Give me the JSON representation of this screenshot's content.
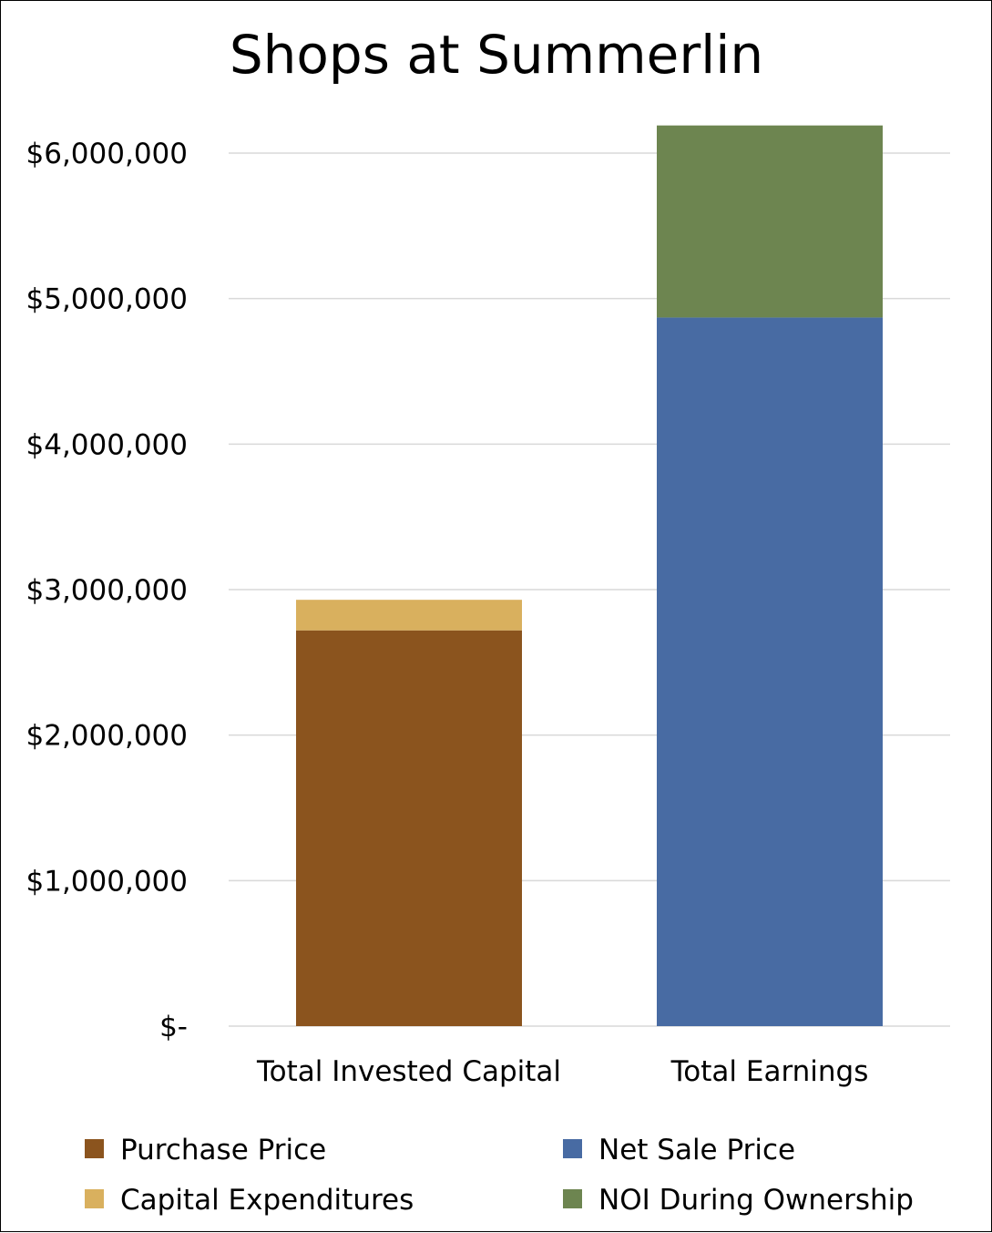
{
  "chart_data": {
    "type": "bar",
    "stacked": true,
    "title": "Shops at Summerlin",
    "categories": [
      "Total Invested Capital",
      "Total Earnings"
    ],
    "series": [
      {
        "name": "Purchase Price",
        "color": "#8b541e",
        "values": [
          2720000,
          0
        ]
      },
      {
        "name": "Capital Expenditures",
        "color": "#d9b05e",
        "values": [
          210000,
          0
        ]
      },
      {
        "name": "Net Sale Price",
        "color": "#486ba3",
        "values": [
          0,
          4870000
        ]
      },
      {
        "name": "NOI During Ownership",
        "color": "#6d8550",
        "values": [
          0,
          1320000
        ]
      }
    ],
    "yticks": [
      {
        "value": 0,
        "label": "$-"
      },
      {
        "value": 1000000,
        "label": "$1,000,000"
      },
      {
        "value": 2000000,
        "label": "$2,000,000"
      },
      {
        "value": 3000000,
        "label": "$3,000,000"
      },
      {
        "value": 4000000,
        "label": "$4,000,000"
      },
      {
        "value": 5000000,
        "label": "$5,000,000"
      },
      {
        "value": 6000000,
        "label": "$6,000,000"
      }
    ],
    "ylim": [
      0,
      6000000
    ],
    "grid": true,
    "legend_position": "bottom"
  }
}
